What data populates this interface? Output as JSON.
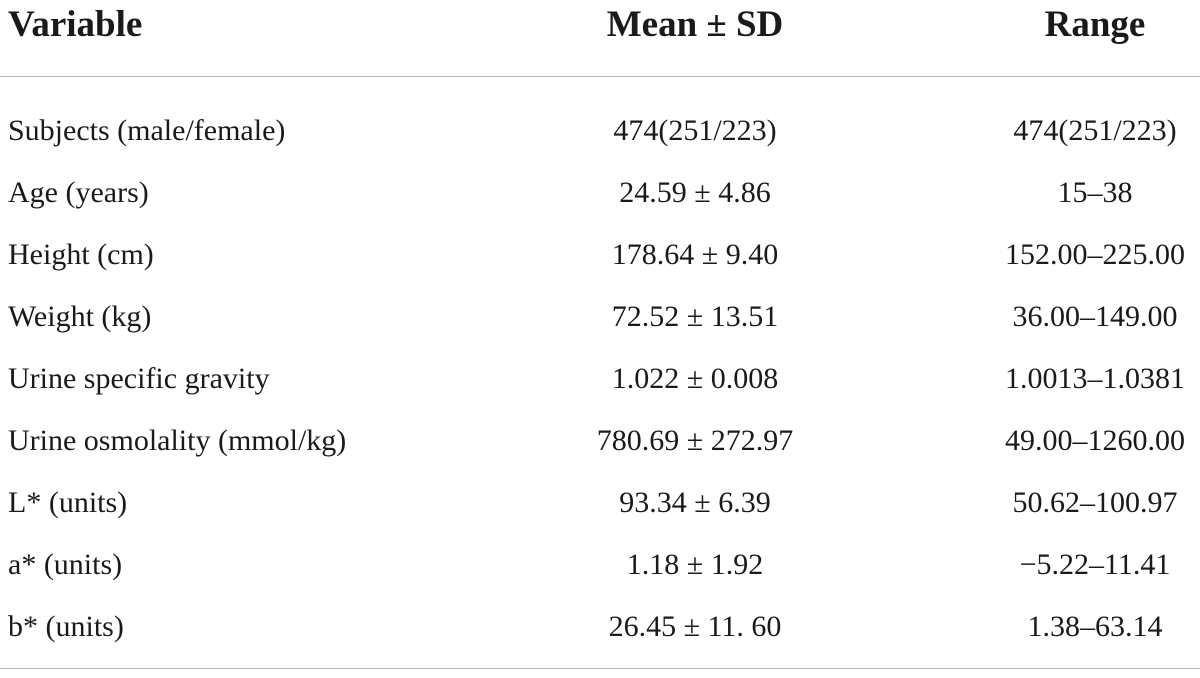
{
  "table": {
    "headers": {
      "variable": "Variable",
      "mean_sd": "Mean ± SD",
      "range": "Range"
    },
    "rows": [
      {
        "variable": "Subjects (male/female)",
        "mean_sd": "474(251/223)",
        "range": "474(251/223)"
      },
      {
        "variable": "Age (years)",
        "mean_sd": "24.59 ± 4.86",
        "range": "15–38"
      },
      {
        "variable": "Height (cm)",
        "mean_sd": "178.64 ± 9.40",
        "range": "152.00–225.00"
      },
      {
        "variable": "Weight (kg)",
        "mean_sd": "72.52 ± 13.51",
        "range": "36.00–149.00"
      },
      {
        "variable": "Urine specific gravity",
        "mean_sd": "1.022 ± 0.008",
        "range": "1.0013–1.0381"
      },
      {
        "variable": "Urine osmolality (mmol/kg)",
        "mean_sd": "780.69 ± 272.97",
        "range": "49.00–1260.00"
      },
      {
        "variable": "L* (units)",
        "mean_sd": "93.34 ± 6.39",
        "range": "50.62–100.97"
      },
      {
        "variable": "a* (units)",
        "mean_sd": "1.18 ± 1.92",
        "range": "−5.22–11.41"
      },
      {
        "variable": "b* (units)",
        "mean_sd": "26.45 ± 11. 60",
        "range": "1.38–63.14"
      }
    ]
  }
}
